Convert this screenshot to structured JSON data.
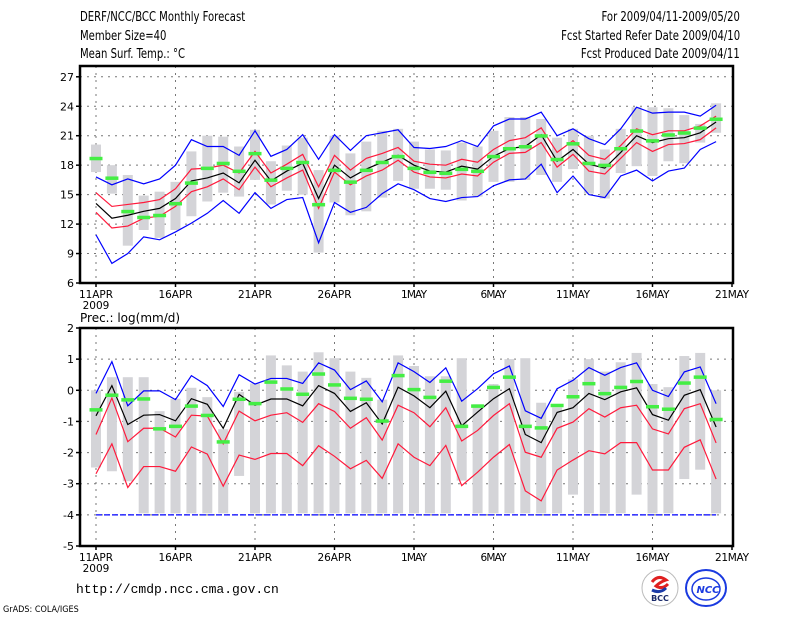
{
  "header": {
    "title": "DERF/NCC/BCC Monthly Forecast",
    "member_size": "Member Size=40",
    "variable": "Mean Surf. Temp.: °C",
    "period": "For 2009/04/11-2009/05/20",
    "start_date": "Fcst Started Refer Date 2009/04/10",
    "produced_date": "Fcst Produced Date 2009/04/11"
  },
  "footer": {
    "url": "http://cmdp.ncc.cma.gov.cn",
    "grads": "GrADS: COLA/IGES",
    "logo_bcc": "BCC",
    "logo_ncc": "NCC"
  },
  "colors": {
    "max_min": "#0000ff",
    "spread": "#ff1a3c",
    "mean": "#000000",
    "obs": "#44ee44",
    "range": "#d4d4d8"
  },
  "chart_data": [
    {
      "type": "line",
      "title": "Mean Surf. Temp.: °C",
      "x_tick_labels": [
        "11APR",
        "16APR",
        "21APR",
        "26APR",
        "1MAY",
        "6MAY",
        "11MAY",
        "16MAY",
        "21MAY"
      ],
      "x_sub_label": "2009",
      "x_start": "2009-04-11",
      "ylim": [
        6,
        28.1
      ],
      "y_ticks": [
        6,
        9,
        12,
        15,
        18,
        21,
        24,
        27
      ],
      "grid": true,
      "series": [
        {
          "name": "upper",
          "color": "blue",
          "values": [
            16.8,
            16.0,
            16.6,
            16.1,
            16.6,
            18.0,
            20.6,
            19.9,
            19.9,
            19.0,
            21.5,
            18.9,
            19.6,
            21.1,
            18.6,
            21.1,
            19.5,
            21.0,
            21.3,
            21.6,
            19.8,
            19.7,
            19.9,
            20.5,
            19.9,
            22.0,
            22.7,
            22.7,
            23.4,
            21.0,
            21.7,
            20.7,
            20.1,
            21.7,
            23.9,
            23.3,
            23.4,
            23.4,
            23.0,
            24.1
          ]
        },
        {
          "name": "lower",
          "color": "blue",
          "values": [
            10.9,
            8.0,
            9.0,
            10.7,
            10.4,
            11.2,
            12.1,
            13.1,
            14.4,
            13.1,
            15.2,
            13.6,
            14.5,
            14.7,
            10.1,
            14.2,
            13.2,
            13.7,
            15.1,
            16.1,
            15.5,
            14.6,
            14.3,
            14.7,
            14.8,
            15.9,
            16.5,
            16.6,
            18.1,
            15.2,
            16.9,
            15.0,
            14.7,
            16.9,
            17.5,
            16.4,
            17.4,
            17.7,
            19.6,
            20.4
          ]
        },
        {
          "name": "spread_upper",
          "color": "red",
          "values": [
            15.2,
            13.8,
            14.0,
            14.2,
            14.5,
            15.6,
            17.6,
            17.7,
            18.0,
            17.2,
            19.4,
            17.2,
            18.1,
            19.1,
            15.8,
            19.0,
            17.5,
            18.7,
            19.2,
            19.8,
            18.4,
            18.1,
            18.0,
            18.6,
            18.3,
            19.6,
            20.5,
            20.8,
            21.8,
            19.3,
            20.5,
            19.0,
            18.6,
            20.0,
            21.7,
            21.1,
            21.5,
            21.5,
            22.0,
            23.0
          ]
        },
        {
          "name": "spread_lower",
          "color": "red",
          "values": [
            13.2,
            11.6,
            11.8,
            12.6,
            12.8,
            13.8,
            15.3,
            15.8,
            16.6,
            15.5,
            17.8,
            15.8,
            16.7,
            17.5,
            13.6,
            17.3,
            16.0,
            16.9,
            17.5,
            18.5,
            17.3,
            16.8,
            16.7,
            17.1,
            16.9,
            18.3,
            19.2,
            19.3,
            20.3,
            17.8,
            19.1,
            17.4,
            17.1,
            18.7,
            20.3,
            19.4,
            20.1,
            20.2,
            20.6,
            21.8
          ]
        },
        {
          "name": "ensemble_mean",
          "color": "black",
          "values": [
            14.1,
            12.6,
            12.9,
            13.3,
            13.6,
            14.6,
            16.4,
            16.7,
            17.2,
            16.2,
            18.5,
            16.4,
            17.4,
            18.2,
            14.6,
            18.0,
            16.7,
            17.6,
            18.3,
            19.0,
            18.0,
            17.4,
            17.3,
            17.9,
            17.6,
            18.9,
            19.7,
            19.9,
            21.1,
            18.4,
            19.6,
            18.1,
            17.7,
            19.3,
            21.0,
            20.3,
            20.7,
            20.8,
            21.3,
            22.4
          ]
        },
        {
          "name": "observed",
          "color": "green",
          "values": [
            18.7,
            16.7,
            13.3,
            12.7,
            12.9,
            14.1,
            16.2,
            17.7,
            18.2,
            17.4,
            19.2,
            16.5,
            17.7,
            18.3,
            14.0,
            17.5,
            16.3,
            17.5,
            18.3,
            18.9,
            17.7,
            17.3,
            17.2,
            17.6,
            17.4,
            18.9,
            19.7,
            19.9,
            21.0,
            18.6,
            20.2,
            18.2,
            18.0,
            19.7,
            21.5,
            20.5,
            21.1,
            21.3,
            21.8,
            22.7
          ]
        }
      ],
      "range_bars": [
        [
          17.3,
          20.1
        ],
        [
          15.1,
          18.0
        ],
        [
          9.8,
          17.0
        ],
        [
          11.4,
          14.9
        ],
        [
          10.6,
          15.3
        ],
        [
          11.4,
          16.3
        ],
        [
          12.8,
          19.4
        ],
        [
          14.3,
          21.0
        ],
        [
          15.2,
          20.9
        ],
        [
          14.8,
          19.9
        ],
        [
          16.5,
          21.6
        ],
        [
          14.0,
          18.4
        ],
        [
          15.4,
          20.0
        ],
        [
          15.0,
          20.8
        ],
        [
          9.1,
          17.5
        ],
        [
          14.2,
          21.0
        ],
        [
          12.9,
          19.2
        ],
        [
          13.3,
          20.4
        ],
        [
          14.7,
          21.5
        ],
        [
          16.4,
          21.7
        ],
        [
          15.6,
          20.4
        ],
        [
          15.6,
          19.6
        ],
        [
          15.5,
          19.5
        ],
        [
          14.4,
          20.3
        ],
        [
          14.8,
          19.9
        ],
        [
          16.3,
          21.5
        ],
        [
          16.3,
          22.9
        ],
        [
          16.5,
          22.9
        ],
        [
          17.0,
          22.7
        ],
        [
          16.3,
          20.8
        ],
        [
          17.6,
          21.7
        ],
        [
          15.1,
          21.0
        ],
        [
          14.6,
          19.6
        ],
        [
          17.2,
          21.7
        ],
        [
          17.9,
          23.9
        ],
        [
          16.9,
          23.9
        ],
        [
          18.4,
          23.8
        ],
        [
          18.2,
          23.1
        ],
        [
          20.3,
          22.2
        ],
        [
          21.3,
          24.3
        ]
      ]
    },
    {
      "type": "line",
      "title": "Prec.: log(mm/d)",
      "x_tick_labels": [
        "11APR",
        "16APR",
        "21APR",
        "26APR",
        "1MAY",
        "6MAY",
        "11MAY",
        "16MAY",
        "21MAY"
      ],
      "x_sub_label": "2009",
      "x_start": "2009-04-11",
      "ylim": [
        -5,
        2
      ],
      "y_ticks": [
        -5,
        -4,
        -3,
        -2,
        -1,
        0,
        1,
        2
      ],
      "grid": true,
      "series": [
        {
          "name": "upper",
          "color": "blue",
          "values": [
            -0.1,
            0.92,
            -0.5,
            -0.02,
            -0.02,
            -0.3,
            0.47,
            0.15,
            -0.52,
            0.5,
            0.2,
            0.38,
            0.38,
            0.22,
            0.88,
            0.65,
            0.02,
            0.3,
            -0.37,
            0.88,
            0.6,
            0.25,
            0.72,
            -0.35,
            0.05,
            0.53,
            0.78,
            -0.66,
            -0.9,
            0.05,
            0.32,
            0.73,
            0.48,
            0.73,
            0.88,
            0.0,
            -0.2,
            0.59,
            0.75,
            -0.43
          ]
        },
        {
          "name": "lower",
          "color": "blue",
          "values": [
            -4,
            -4,
            -4,
            -4,
            -4,
            -4,
            -4,
            -4,
            -4,
            -4,
            -4,
            -4,
            -4,
            -4,
            -4,
            -4,
            -4,
            -4,
            -4,
            -4,
            -4,
            -4,
            -4,
            -4,
            -4,
            -4,
            -4,
            -4,
            -4,
            -4,
            -4,
            -4,
            -4,
            -4,
            -4,
            -4,
            -4,
            -4,
            -4,
            -4
          ]
        },
        {
          "name": "spread_upper",
          "color": "red",
          "values": [
            -1.42,
            -0.25,
            -1.65,
            -1.22,
            -1.22,
            -1.5,
            -0.8,
            -0.83,
            -1.72,
            -0.67,
            -0.98,
            -0.8,
            -0.72,
            -1.03,
            -0.43,
            -0.68,
            -1.22,
            -0.88,
            -1.6,
            -0.48,
            -0.72,
            -1.17,
            -0.56,
            -1.63,
            -1.29,
            -0.81,
            -0.43,
            -1.99,
            -2.15,
            -1.22,
            -1.02,
            -0.59,
            -0.86,
            -0.56,
            -0.48,
            -1.24,
            -1.4,
            -0.59,
            -0.43,
            -1.69
          ]
        },
        {
          "name": "spread_lower",
          "color": "red",
          "values": [
            -2.68,
            -1.72,
            -3.12,
            -2.45,
            -2.45,
            -2.6,
            -1.82,
            -2.05,
            -3.08,
            -2.08,
            -2.22,
            -2.03,
            -2.03,
            -2.42,
            -1.78,
            -2.12,
            -2.52,
            -2.25,
            -2.83,
            -1.72,
            -2.15,
            -2.42,
            -1.77,
            -3.06,
            -2.63,
            -2.15,
            -1.74,
            -3.23,
            -3.55,
            -2.56,
            -2.24,
            -1.94,
            -2.04,
            -1.68,
            -1.68,
            -2.56,
            -2.56,
            -1.83,
            -1.59,
            -2.85
          ]
        },
        {
          "name": "ensemble_mean",
          "color": "black",
          "values": [
            -0.82,
            0.15,
            -1.1,
            -0.8,
            -0.78,
            -0.98,
            -0.27,
            -0.45,
            -1.22,
            -0.13,
            -0.48,
            -0.28,
            -0.28,
            -0.5,
            0.15,
            -0.1,
            -0.68,
            -0.4,
            -1.08,
            0.1,
            -0.18,
            -0.56,
            -0.03,
            -1.14,
            -0.7,
            -0.27,
            0.05,
            -1.42,
            -1.68,
            -0.71,
            -0.56,
            -0.1,
            -0.3,
            -0.05,
            0.08,
            -0.78,
            -0.96,
            -0.16,
            0.02,
            -1.18
          ]
        },
        {
          "name": "observed",
          "color": "green",
          "values": [
            -0.62,
            -0.15,
            -0.3,
            -0.27,
            -1.23,
            -1.15,
            -0.5,
            -0.8,
            -1.65,
            -0.28,
            -0.42,
            0.27,
            0.05,
            -0.12,
            0.53,
            0.18,
            -0.25,
            -0.28,
            -0.98,
            0.48,
            0.03,
            -0.22,
            0.3,
            -1.15,
            -0.5,
            0.1,
            0.43,
            -1.15,
            -1.2,
            -0.48,
            -0.2,
            0.22,
            -0.1,
            0.1,
            0.29,
            -0.52,
            -0.6,
            0.24,
            0.43,
            -0.93
          ]
        }
      ],
      "range_bars": [
        [
          -2.48,
          0
        ],
        [
          -2.6,
          0.42
        ],
        [
          -2.92,
          0.42
        ],
        [
          -3.95,
          0.42
        ],
        [
          -3.95,
          -0.67
        ],
        [
          -3.95,
          -0.27
        ],
        [
          -3.95,
          0.08
        ],
        [
          -3.95,
          -0.22
        ],
        [
          -3.95,
          -1.25
        ],
        [
          -2.75,
          -0.05
        ],
        [
          -3.95,
          0.22
        ],
        [
          -3.95,
          1.12
        ],
        [
          -3.95,
          0.8
        ],
        [
          -3.95,
          0.6
        ],
        [
          -3.95,
          1.22
        ],
        [
          -3.95,
          1.03
        ],
        [
          -3.95,
          0.6
        ],
        [
          -3.95,
          0.4
        ],
        [
          -3.95,
          -0.3
        ],
        [
          -3.95,
          1.12
        ],
        [
          -3.95,
          0.78
        ],
        [
          -3.95,
          0.45
        ],
        [
          -3.95,
          0.45
        ],
        [
          -2.9,
          1.03
        ],
        [
          -3.95,
          -0.45
        ],
        [
          -3.95,
          0.2
        ],
        [
          -3.95,
          1.0
        ],
        [
          -3.95,
          1.03
        ],
        [
          -3.95,
          -0.4
        ],
        [
          -3.95,
          -0.55
        ],
        [
          -3.35,
          0.35
        ],
        [
          -3.95,
          1.0
        ],
        [
          -3.95,
          0.6
        ],
        [
          -3.95,
          0.9
        ],
        [
          -3.35,
          1.2
        ],
        [
          -3.95,
          0.2
        ],
        [
          -3.95,
          0.1
        ],
        [
          -2.85,
          1.1
        ],
        [
          -2.55,
          1.2
        ],
        [
          -3.95,
          0
        ]
      ]
    }
  ]
}
